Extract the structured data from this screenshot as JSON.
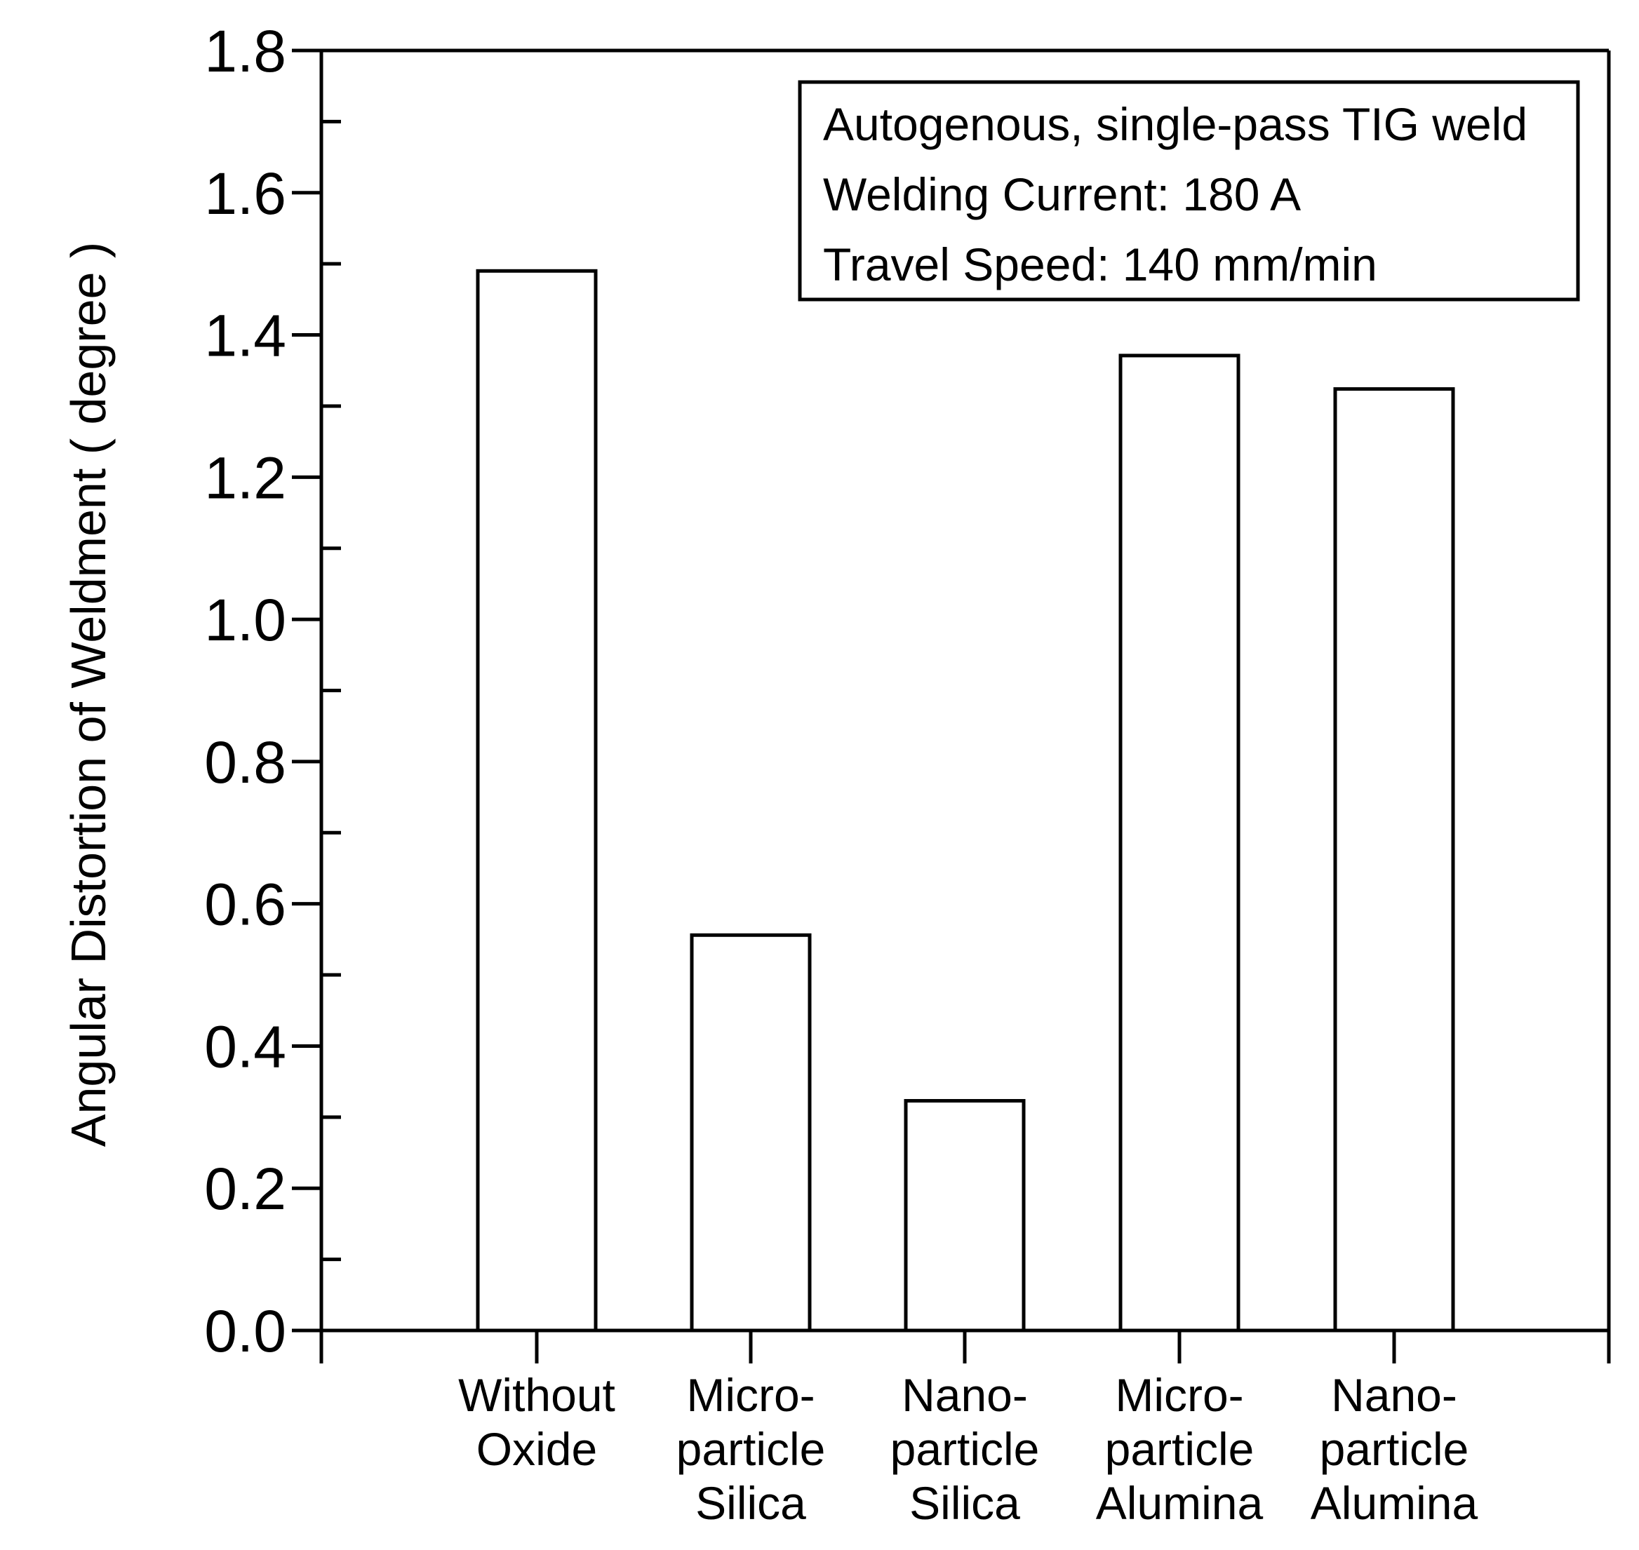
{
  "chart_data": {
    "type": "bar",
    "title": "",
    "xlabel": "",
    "ylabel": "Angular Distortion of Weldment ( degree )",
    "ylim": [
      0,
      1.8
    ],
    "y_ticks": [
      "0.0",
      "0.2",
      "0.4",
      "0.6",
      "0.8",
      "1.0",
      "1.2",
      "1.4",
      "1.6",
      "1.8"
    ],
    "categories": [
      [
        "Without",
        "Oxide"
      ],
      [
        "Micro-",
        "particle",
        "Silica"
      ],
      [
        "Nano-",
        "particle",
        "Silica"
      ],
      [
        "Micro-",
        "particle",
        "Alumina"
      ],
      [
        "Nano-",
        "particle",
        "Alumina"
      ]
    ],
    "values": [
      1.49,
      0.556,
      0.323,
      1.371,
      1.324
    ],
    "bar_fill": "#ffffff",
    "bar_stroke": "#000000",
    "grid": false,
    "annotation": {
      "lines": [
        "Autogenous, single-pass TIG weld",
        "Welding Current: 180 A",
        "Travel Speed: 140 mm/min"
      ],
      "placement": "top-right"
    }
  }
}
